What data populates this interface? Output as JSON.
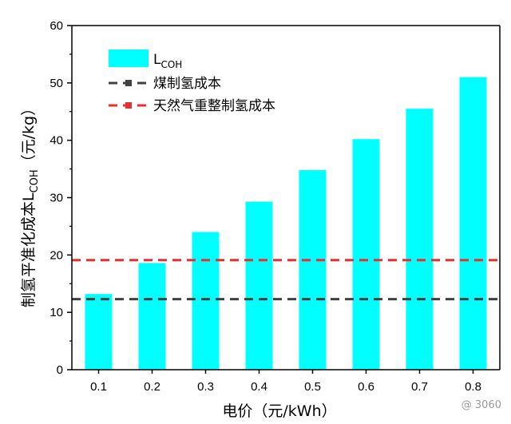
{
  "chart_data": {
    "type": "bar",
    "categories": [
      "0.1",
      "0.2",
      "0.3",
      "0.4",
      "0.5",
      "0.6",
      "0.7",
      "0.8"
    ],
    "series": [
      {
        "name": "L",
        "name_sub": "COH",
        "values": [
          13.2,
          18.6,
          24.0,
          29.3,
          34.8,
          40.2,
          45.5,
          51.0
        ],
        "color": "#00FFFF"
      }
    ],
    "reference_lines": [
      {
        "name": "煤制氢成本",
        "value": 12.3,
        "color": "#404040",
        "style": "dashed"
      },
      {
        "name": "天然气重整制氢成本",
        "value": 19.1,
        "color": "#E8302E",
        "style": "dashed"
      }
    ],
    "xlabel": "电价（元/kWh）",
    "ylabel_prefix": "制氢平准化成本L",
    "ylabel_sub": "COH",
    "ylabel_suffix": "（元/kg）",
    "ylim": [
      0,
      60
    ],
    "yticks": [
      "0",
      "10",
      "20",
      "30",
      "40",
      "50",
      "60"
    ],
    "grid": false,
    "legend_position": "top-left"
  },
  "watermark": "3060"
}
